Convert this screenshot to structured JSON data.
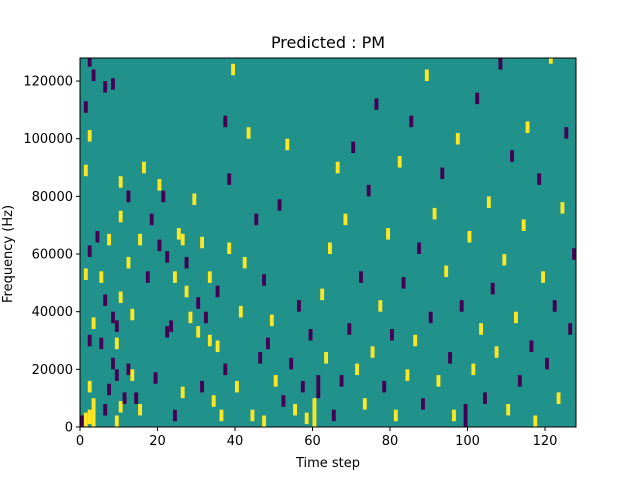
{
  "chart_data": {
    "type": "heatmap",
    "title": "Predicted : PM",
    "xlabel": "Time step",
    "ylabel": "Frequency (Hz)",
    "xlim": [
      0,
      128
    ],
    "ylim": [
      0,
      128000
    ],
    "xticks": [
      0,
      20,
      40,
      60,
      80,
      100,
      120
    ],
    "yticks": [
      0,
      20000,
      40000,
      60000,
      80000,
      100000,
      120000
    ],
    "n_time_steps": 128,
    "n_freq_bins": 128,
    "bin_height_hz": 1000,
    "levels": {
      "low": -1,
      "mid": 0,
      "high": 1
    },
    "colors": {
      "low": "#440154",
      "mid": "#21918c",
      "high": "#fde725"
    },
    "background_level": 0,
    "cells": [
      {
        "t": 0,
        "f": 0,
        "len": 4,
        "v": -1
      },
      {
        "t": 1,
        "f": 0,
        "len": 5,
        "v": 1
      },
      {
        "t": 2,
        "f": 1,
        "len": 5,
        "v": 1
      },
      {
        "t": 3,
        "f": 0,
        "len": 10,
        "v": 1
      },
      {
        "t": 2,
        "f": 12,
        "len": 4,
        "v": 1
      },
      {
        "t": 2,
        "f": 28,
        "len": 4,
        "v": -1
      },
      {
        "t": 3,
        "f": 34,
        "len": 4,
        "v": 1
      },
      {
        "t": 1,
        "f": 51,
        "len": 4,
        "v": 1
      },
      {
        "t": 2,
        "f": 59,
        "len": 4,
        "v": -1
      },
      {
        "t": 1,
        "f": 87,
        "len": 4,
        "v": 1
      },
      {
        "t": 2,
        "f": 99,
        "len": 4,
        "v": 1
      },
      {
        "t": 1,
        "f": 109,
        "len": 4,
        "v": -1
      },
      {
        "t": 3,
        "f": 120,
        "len": 4,
        "v": -1
      },
      {
        "t": 2,
        "f": 125,
        "len": 3,
        "v": -1
      },
      {
        "t": 4,
        "f": 64,
        "len": 4,
        "v": -1
      },
      {
        "t": 5,
        "f": 27,
        "len": 4,
        "v": -1
      },
      {
        "t": 5,
        "f": 50,
        "len": 4,
        "v": 1
      },
      {
        "t": 6,
        "f": 116,
        "len": 4,
        "v": -1
      },
      {
        "t": 6,
        "f": 4,
        "len": 4,
        "v": -1
      },
      {
        "t": 6,
        "f": 42,
        "len": 4,
        "v": -1
      },
      {
        "t": 7,
        "f": 63,
        "len": 4,
        "v": 1
      },
      {
        "t": 7,
        "f": 11,
        "len": 4,
        "v": -1
      },
      {
        "t": 8,
        "f": 20,
        "len": 4,
        "v": -1
      },
      {
        "t": 8,
        "f": 36,
        "len": 4,
        "v": -1
      },
      {
        "t": 8,
        "f": 117,
        "len": 4,
        "v": -1
      },
      {
        "t": 9,
        "f": 0,
        "len": 4,
        "v": 1
      },
      {
        "t": 9,
        "f": 16,
        "len": 4,
        "v": -1
      },
      {
        "t": 9,
        "f": 27,
        "len": 4,
        "v": 1
      },
      {
        "t": 9,
        "f": 33,
        "len": 4,
        "v": -1
      },
      {
        "t": 10,
        "f": 5,
        "len": 4,
        "v": 1
      },
      {
        "t": 10,
        "f": 43,
        "len": 4,
        "v": 1
      },
      {
        "t": 10,
        "f": 71,
        "len": 4,
        "v": 1
      },
      {
        "t": 10,
        "f": 83,
        "len": 4,
        "v": 1
      },
      {
        "t": 11,
        "f": 8,
        "len": 4,
        "v": -1
      },
      {
        "t": 12,
        "f": 55,
        "len": 4,
        "v": 1
      },
      {
        "t": 12,
        "f": 18,
        "len": 4,
        "v": -1
      },
      {
        "t": 12,
        "f": 78,
        "len": 4,
        "v": -1
      },
      {
        "t": 13,
        "f": 37,
        "len": 4,
        "v": 1
      },
      {
        "t": 13,
        "f": 16,
        "len": 4,
        "v": 1
      },
      {
        "t": 14,
        "f": 8,
        "len": 4,
        "v": -1
      },
      {
        "t": 15,
        "f": 63,
        "len": 4,
        "v": 1
      },
      {
        "t": 15,
        "f": 4,
        "len": 4,
        "v": 1
      },
      {
        "t": 16,
        "f": 88,
        "len": 4,
        "v": 1
      },
      {
        "t": 17,
        "f": 50,
        "len": 4,
        "v": -1
      },
      {
        "t": 18,
        "f": 70,
        "len": 4,
        "v": -1
      },
      {
        "t": 19,
        "f": 15,
        "len": 4,
        "v": -1
      },
      {
        "t": 20,
        "f": 61,
        "len": 4,
        "v": -1
      },
      {
        "t": 20,
        "f": 82,
        "len": 4,
        "v": 1
      },
      {
        "t": 21,
        "f": 78,
        "len": 4,
        "v": -1
      },
      {
        "t": 22,
        "f": 31,
        "len": 4,
        "v": -1
      },
      {
        "t": 22,
        "f": 57,
        "len": 4,
        "v": -1
      },
      {
        "t": 23,
        "f": 33,
        "len": 4,
        "v": -1
      },
      {
        "t": 24,
        "f": 2,
        "len": 4,
        "v": -1
      },
      {
        "t": 24,
        "f": 50,
        "len": 4,
        "v": 1
      },
      {
        "t": 25,
        "f": 65,
        "len": 4,
        "v": 1
      },
      {
        "t": 26,
        "f": 63,
        "len": 4,
        "v": 1
      },
      {
        "t": 26,
        "f": 10,
        "len": 4,
        "v": 1
      },
      {
        "t": 27,
        "f": 55,
        "len": 4,
        "v": -1
      },
      {
        "t": 27,
        "f": 45,
        "len": 4,
        "v": 1
      },
      {
        "t": 28,
        "f": 36,
        "len": 4,
        "v": 1
      },
      {
        "t": 29,
        "f": 77,
        "len": 4,
        "v": 1
      },
      {
        "t": 30,
        "f": 31,
        "len": 4,
        "v": 1
      },
      {
        "t": 30,
        "f": 41,
        "len": 4,
        "v": -1
      },
      {
        "t": 31,
        "f": 12,
        "len": 4,
        "v": -1
      },
      {
        "t": 31,
        "f": 62,
        "len": 4,
        "v": 1
      },
      {
        "t": 32,
        "f": 36,
        "len": 4,
        "v": -1
      },
      {
        "t": 33,
        "f": 28,
        "len": 4,
        "v": 1
      },
      {
        "t": 33,
        "f": 50,
        "len": 4,
        "v": 1
      },
      {
        "t": 34,
        "f": 7,
        "len": 4,
        "v": 1
      },
      {
        "t": 35,
        "f": 26,
        "len": 4,
        "v": 1
      },
      {
        "t": 35,
        "f": 45,
        "len": 4,
        "v": -1
      },
      {
        "t": 36,
        "f": 2,
        "len": 4,
        "v": 1
      },
      {
        "t": 37,
        "f": 104,
        "len": 4,
        "v": -1
      },
      {
        "t": 37,
        "f": 18,
        "len": 4,
        "v": -1
      },
      {
        "t": 38,
        "f": 84,
        "len": 4,
        "v": -1
      },
      {
        "t": 38,
        "f": 60,
        "len": 4,
        "v": 1
      },
      {
        "t": 39,
        "f": 122,
        "len": 4,
        "v": 1
      },
      {
        "t": 40,
        "f": 12,
        "len": 4,
        "v": 1
      },
      {
        "t": 41,
        "f": 38,
        "len": 4,
        "v": 1
      },
      {
        "t": 42,
        "f": 55,
        "len": 4,
        "v": 1
      },
      {
        "t": 43,
        "f": 100,
        "len": 4,
        "v": 1
      },
      {
        "t": 44,
        "f": 2,
        "len": 4,
        "v": 1
      },
      {
        "t": 45,
        "f": 70,
        "len": 4,
        "v": -1
      },
      {
        "t": 46,
        "f": 22,
        "len": 4,
        "v": -1
      },
      {
        "t": 47,
        "f": 0,
        "len": 4,
        "v": 1
      },
      {
        "t": 47,
        "f": 49,
        "len": 4,
        "v": -1
      },
      {
        "t": 48,
        "f": 27,
        "len": 4,
        "v": -1
      },
      {
        "t": 49,
        "f": 35,
        "len": 4,
        "v": 1
      },
      {
        "t": 50,
        "f": 14,
        "len": 4,
        "v": 1
      },
      {
        "t": 51,
        "f": 75,
        "len": 4,
        "v": -1
      },
      {
        "t": 52,
        "f": 7,
        "len": 4,
        "v": -1
      },
      {
        "t": 53,
        "f": 96,
        "len": 4,
        "v": 1
      },
      {
        "t": 54,
        "f": 20,
        "len": 4,
        "v": -1
      },
      {
        "t": 55,
        "f": 4,
        "len": 4,
        "v": 1
      },
      {
        "t": 56,
        "f": 40,
        "len": 4,
        "v": -1
      },
      {
        "t": 57,
        "f": 12,
        "len": 4,
        "v": -1
      },
      {
        "t": 58,
        "f": 1,
        "len": 4,
        "v": 1
      },
      {
        "t": 59,
        "f": 30,
        "len": 4,
        "v": -1
      },
      {
        "t": 60,
        "f": 0,
        "len": 10,
        "v": 1
      },
      {
        "t": 61,
        "f": 10,
        "len": 8,
        "v": -1
      },
      {
        "t": 62,
        "f": 44,
        "len": 4,
        "v": 1
      },
      {
        "t": 63,
        "f": 22,
        "len": 4,
        "v": 1
      },
      {
        "t": 64,
        "f": 60,
        "len": 4,
        "v": 1
      },
      {
        "t": 65,
        "f": 2,
        "len": 4,
        "v": -1
      },
      {
        "t": 66,
        "f": 88,
        "len": 4,
        "v": 1
      },
      {
        "t": 67,
        "f": 14,
        "len": 4,
        "v": -1
      },
      {
        "t": 68,
        "f": 70,
        "len": 4,
        "v": 1
      },
      {
        "t": 69,
        "f": 32,
        "len": 4,
        "v": -1
      },
      {
        "t": 70,
        "f": 95,
        "len": 4,
        "v": -1
      },
      {
        "t": 71,
        "f": 18,
        "len": 4,
        "v": 1
      },
      {
        "t": 72,
        "f": 50,
        "len": 4,
        "v": -1
      },
      {
        "t": 73,
        "f": 6,
        "len": 4,
        "v": 1
      },
      {
        "t": 74,
        "f": 80,
        "len": 4,
        "v": -1
      },
      {
        "t": 75,
        "f": 24,
        "len": 4,
        "v": 1
      },
      {
        "t": 76,
        "f": 110,
        "len": 4,
        "v": -1
      },
      {
        "t": 77,
        "f": 40,
        "len": 4,
        "v": 1
      },
      {
        "t": 78,
        "f": 12,
        "len": 4,
        "v": -1
      },
      {
        "t": 79,
        "f": 65,
        "len": 4,
        "v": 1
      },
      {
        "t": 80,
        "f": 30,
        "len": 4,
        "v": -1
      },
      {
        "t": 81,
        "f": 2,
        "len": 4,
        "v": 1
      },
      {
        "t": 82,
        "f": 90,
        "len": 4,
        "v": 1
      },
      {
        "t": 83,
        "f": 48,
        "len": 4,
        "v": -1
      },
      {
        "t": 84,
        "f": 16,
        "len": 4,
        "v": 1
      },
      {
        "t": 85,
        "f": 104,
        "len": 4,
        "v": -1
      },
      {
        "t": 86,
        "f": 28,
        "len": 4,
        "v": 1
      },
      {
        "t": 87,
        "f": 60,
        "len": 4,
        "v": -1
      },
      {
        "t": 88,
        "f": 6,
        "len": 4,
        "v": -1
      },
      {
        "t": 89,
        "f": 120,
        "len": 4,
        "v": 1
      },
      {
        "t": 90,
        "f": 36,
        "len": 4,
        "v": -1
      },
      {
        "t": 91,
        "f": 72,
        "len": 4,
        "v": 1
      },
      {
        "t": 92,
        "f": 14,
        "len": 4,
        "v": 1
      },
      {
        "t": 93,
        "f": 86,
        "len": 4,
        "v": -1
      },
      {
        "t": 94,
        "f": 52,
        "len": 4,
        "v": 1
      },
      {
        "t": 95,
        "f": 22,
        "len": 4,
        "v": -1
      },
      {
        "t": 96,
        "f": 2,
        "len": 4,
        "v": 1
      },
      {
        "t": 97,
        "f": 98,
        "len": 4,
        "v": 1
      },
      {
        "t": 98,
        "f": 40,
        "len": 4,
        "v": -1
      },
      {
        "t": 99,
        "f": 0,
        "len": 8,
        "v": -1
      },
      {
        "t": 100,
        "f": 64,
        "len": 4,
        "v": 1
      },
      {
        "t": 101,
        "f": 18,
        "len": 4,
        "v": 1
      },
      {
        "t": 102,
        "f": 112,
        "len": 4,
        "v": -1
      },
      {
        "t": 103,
        "f": 32,
        "len": 4,
        "v": 1
      },
      {
        "t": 104,
        "f": 8,
        "len": 4,
        "v": -1
      },
      {
        "t": 105,
        "f": 76,
        "len": 4,
        "v": 1
      },
      {
        "t": 106,
        "f": 46,
        "len": 4,
        "v": -1
      },
      {
        "t": 107,
        "f": 24,
        "len": 4,
        "v": 1
      },
      {
        "t": 108,
        "f": 124,
        "len": 4,
        "v": -1
      },
      {
        "t": 109,
        "f": 56,
        "len": 4,
        "v": 1
      },
      {
        "t": 110,
        "f": 4,
        "len": 4,
        "v": 1
      },
      {
        "t": 111,
        "f": 92,
        "len": 4,
        "v": -1
      },
      {
        "t": 112,
        "f": 36,
        "len": 4,
        "v": 1
      },
      {
        "t": 113,
        "f": 14,
        "len": 4,
        "v": -1
      },
      {
        "t": 114,
        "f": 68,
        "len": 4,
        "v": 1
      },
      {
        "t": 115,
        "f": 102,
        "len": 4,
        "v": 1
      },
      {
        "t": 116,
        "f": 26,
        "len": 4,
        "v": -1
      },
      {
        "t": 117,
        "f": 0,
        "len": 4,
        "v": 1
      },
      {
        "t": 118,
        "f": 84,
        "len": 4,
        "v": -1
      },
      {
        "t": 119,
        "f": 50,
        "len": 4,
        "v": 1
      },
      {
        "t": 120,
        "f": 20,
        "len": 4,
        "v": -1
      },
      {
        "t": 121,
        "f": 126,
        "len": 2,
        "v": 1
      },
      {
        "t": 122,
        "f": 40,
        "len": 4,
        "v": -1
      },
      {
        "t": 123,
        "f": 8,
        "len": 4,
        "v": 1
      },
      {
        "t": 124,
        "f": 74,
        "len": 4,
        "v": 1
      },
      {
        "t": 125,
        "f": 100,
        "len": 4,
        "v": -1
      },
      {
        "t": 126,
        "f": 32,
        "len": 4,
        "v": -1
      },
      {
        "t": 127,
        "f": 58,
        "len": 4,
        "v": -1
      }
    ]
  }
}
